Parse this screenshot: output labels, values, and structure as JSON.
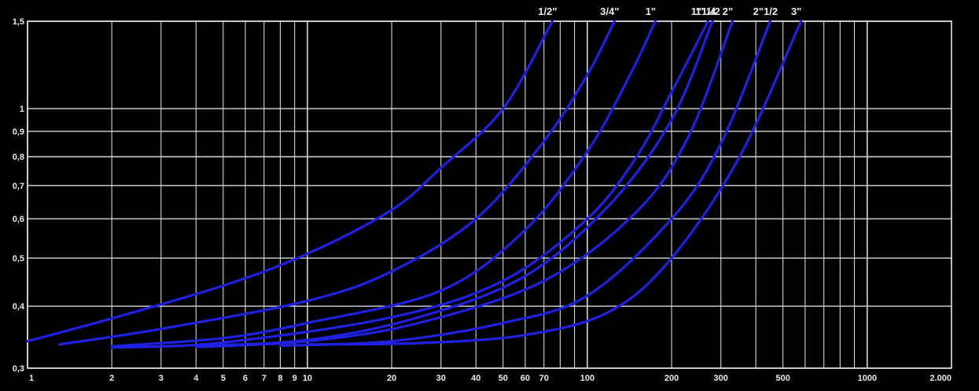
{
  "chart_data": {
    "type": "line",
    "x_scale": "log",
    "y_scale": "log",
    "xlim": [
      1,
      2000
    ],
    "ylim": [
      0.3,
      1.5
    ],
    "grid": true,
    "legend": "series labels at top end of each curve",
    "x_ticks": [
      {
        "v": 1,
        "label": "1"
      },
      {
        "v": 2,
        "label": "2"
      },
      {
        "v": 3,
        "label": "3"
      },
      {
        "v": 4,
        "label": "4"
      },
      {
        "v": 5,
        "label": "5"
      },
      {
        "v": 6,
        "label": "6"
      },
      {
        "v": 7,
        "label": "7"
      },
      {
        "v": 8,
        "label": "8"
      },
      {
        "v": 9,
        "label": "9"
      },
      {
        "v": 10,
        "label": "10"
      },
      {
        "v": 20,
        "label": "20"
      },
      {
        "v": 30,
        "label": "30"
      },
      {
        "v": 40,
        "label": "40"
      },
      {
        "v": 50,
        "label": "50"
      },
      {
        "v": 60,
        "label": "60"
      },
      {
        "v": 70,
        "label": "70"
      },
      {
        "v": 100,
        "label": "100"
      },
      {
        "v": 200,
        "label": "200"
      },
      {
        "v": 300,
        "label": "300"
      },
      {
        "v": 500,
        "label": "500"
      },
      {
        "v": 1000,
        "label": "1000"
      },
      {
        "v": 2000,
        "label": "2.000"
      }
    ],
    "y_ticks": [
      {
        "v": 0.3,
        "label": "0,3"
      },
      {
        "v": 0.4,
        "label": "0,4"
      },
      {
        "v": 0.5,
        "label": "0,5"
      },
      {
        "v": 0.6,
        "label": "0,6"
      },
      {
        "v": 0.7,
        "label": "0,7"
      },
      {
        "v": 0.8,
        "label": "0,8"
      },
      {
        "v": 0.9,
        "label": "0,9"
      },
      {
        "v": 1,
        "label": "1"
      },
      {
        "v": 1.5,
        "label": "1,5"
      }
    ],
    "series": [
      {
        "name": "1/2\"",
        "points": [
          [
            1,
            0.34
          ],
          [
            2,
            0.378
          ],
          [
            5,
            0.44
          ],
          [
            10,
            0.51
          ],
          [
            20,
            0.625
          ],
          [
            30,
            0.76
          ],
          [
            50,
            1.0
          ],
          [
            75,
            1.5
          ]
        ]
      },
      {
        "name": "3/4\"",
        "points": [
          [
            1.3,
            0.335
          ],
          [
            3,
            0.36
          ],
          [
            10,
            0.41
          ],
          [
            20,
            0.47
          ],
          [
            40,
            0.6
          ],
          [
            70,
            0.86
          ],
          [
            100,
            1.17
          ],
          [
            125,
            1.5
          ]
        ]
      },
      {
        "name": "1\"",
        "points": [
          [
            2,
            0.332
          ],
          [
            5,
            0.345
          ],
          [
            10,
            0.37
          ],
          [
            30,
            0.43
          ],
          [
            60,
            0.57
          ],
          [
            100,
            0.82
          ],
          [
            140,
            1.15
          ],
          [
            175,
            1.5
          ]
        ]
      },
      {
        "name": "1\"1/4",
        "points": [
          [
            2,
            0.33
          ],
          [
            5,
            0.338
          ],
          [
            20,
            0.38
          ],
          [
            50,
            0.45
          ],
          [
            100,
            0.6
          ],
          [
            150,
            0.8
          ],
          [
            200,
            1.08
          ],
          [
            270,
            1.5
          ]
        ]
      },
      {
        "name": "1\"1/2",
        "points": [
          [
            4,
            0.333
          ],
          [
            10,
            0.342
          ],
          [
            25,
            0.38
          ],
          [
            60,
            0.46
          ],
          [
            120,
            0.64
          ],
          [
            200,
            0.95
          ],
          [
            280,
            1.5
          ]
        ]
      },
      {
        "name": "2\"",
        "points": [
          [
            4,
            0.331
          ],
          [
            10,
            0.34
          ],
          [
            25,
            0.37
          ],
          [
            70,
            0.45
          ],
          [
            150,
            0.62
          ],
          [
            230,
            0.88
          ],
          [
            330,
            1.5
          ]
        ]
      },
      {
        "name": "2\"1/2",
        "points": [
          [
            8,
            0.333
          ],
          [
            20,
            0.34
          ],
          [
            50,
            0.37
          ],
          [
            100,
            0.42
          ],
          [
            200,
            0.6
          ],
          [
            300,
            0.85
          ],
          [
            450,
            1.5
          ]
        ]
      },
      {
        "name": "3\"",
        "points": [
          [
            10,
            0.335
          ],
          [
            25,
            0.337
          ],
          [
            60,
            0.35
          ],
          [
            120,
            0.39
          ],
          [
            200,
            0.5
          ],
          [
            350,
            0.8
          ],
          [
            580,
            1.5
          ]
        ]
      }
    ]
  }
}
